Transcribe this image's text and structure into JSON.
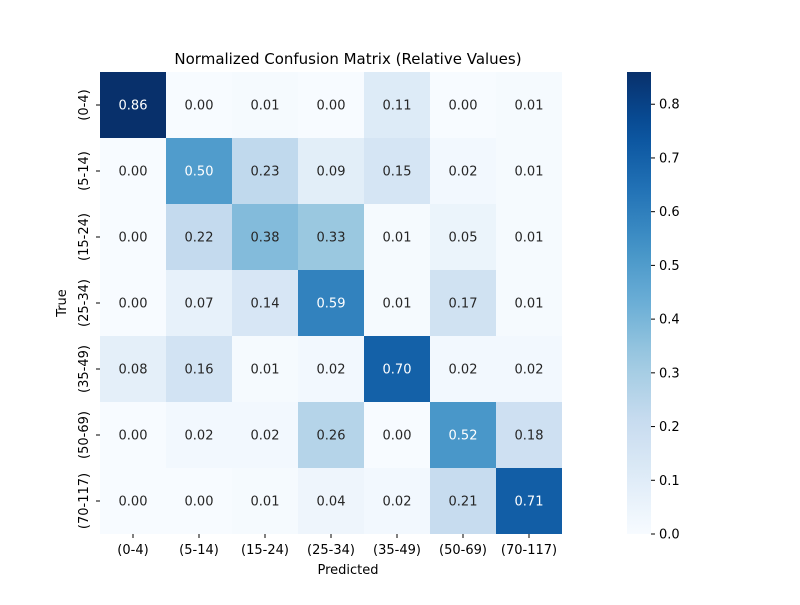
{
  "chart_data": {
    "type": "heatmap",
    "title": "Normalized Confusion Matrix (Relative Values)",
    "xlabel": "Predicted",
    "ylabel": "True",
    "x_categories": [
      "(0-4)",
      "(5-14)",
      "(15-24)",
      "(25-34)",
      "(35-49)",
      "(50-69)",
      "(70-117)"
    ],
    "y_categories": [
      "(0-4)",
      "(5-14)",
      "(15-24)",
      "(25-34)",
      "(35-49)",
      "(50-69)",
      "(70-117)"
    ],
    "values": [
      [
        0.86,
        0.0,
        0.01,
        0.0,
        0.11,
        0.0,
        0.01
      ],
      [
        0.0,
        0.5,
        0.23,
        0.09,
        0.15,
        0.02,
        0.01
      ],
      [
        0.0,
        0.22,
        0.38,
        0.33,
        0.01,
        0.05,
        0.01
      ],
      [
        0.0,
        0.07,
        0.14,
        0.59,
        0.01,
        0.17,
        0.01
      ],
      [
        0.08,
        0.16,
        0.01,
        0.02,
        0.7,
        0.02,
        0.02
      ],
      [
        0.0,
        0.02,
        0.02,
        0.26,
        0.0,
        0.52,
        0.18
      ],
      [
        0.0,
        0.0,
        0.01,
        0.04,
        0.02,
        0.21,
        0.71
      ]
    ],
    "value_format_decimals": 2,
    "colormap": "Blues",
    "colorbar": {
      "range": [
        0.0,
        0.86
      ],
      "ticks": [
        0.0,
        0.1,
        0.2,
        0.3,
        0.4,
        0.5,
        0.6,
        0.7,
        0.8
      ],
      "tick_labels": [
        "0.0",
        "0.1",
        "0.2",
        "0.3",
        "0.4",
        "0.5",
        "0.6",
        "0.7",
        "0.8"
      ]
    },
    "annotation_colors": {
      "dark_text": "#262626",
      "light_text": "#ffffff"
    }
  }
}
